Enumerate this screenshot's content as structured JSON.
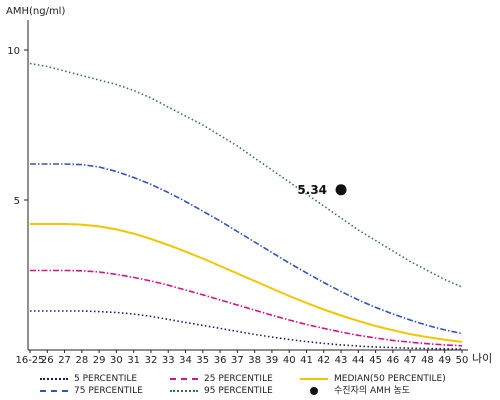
{
  "chart_data": {
    "type": "line",
    "title": "",
    "ylabel": "AMH(ng/ml)",
    "xlabel": "나이",
    "ylim": [
      0,
      11
    ],
    "yticks": [
      5,
      10
    ],
    "grid": false,
    "legend_position": "bottom",
    "categories": [
      "16-25",
      "26",
      "27",
      "28",
      "29",
      "30",
      "31",
      "32",
      "33",
      "34",
      "35",
      "36",
      "37",
      "38",
      "39",
      "40",
      "41",
      "42",
      "43",
      "44",
      "45",
      "46",
      "47",
      "48",
      "49",
      "50"
    ],
    "series": [
      {
        "name": "5 PERCENTILE",
        "color": "#1a1a6e",
        "style": "dotted",
        "values": [
          1.3,
          1.3,
          1.3,
          1.3,
          1.28,
          1.25,
          1.2,
          1.12,
          1.02,
          0.92,
          0.82,
          0.72,
          0.62,
          0.52,
          0.43,
          0.35,
          0.28,
          0.22,
          0.17,
          0.13,
          0.1,
          0.08,
          0.06,
          0.05,
          0.04,
          0.03
        ]
      },
      {
        "name": "25 PERCENTILE",
        "color": "#d4148c",
        "style": "dashdot",
        "values": [
          2.65,
          2.65,
          2.65,
          2.64,
          2.6,
          2.52,
          2.42,
          2.3,
          2.16,
          2.0,
          1.84,
          1.67,
          1.5,
          1.33,
          1.16,
          1.0,
          0.85,
          0.72,
          0.6,
          0.49,
          0.4,
          0.32,
          0.26,
          0.21,
          0.17,
          0.14
        ]
      },
      {
        "name": "75 PERCENTILE",
        "color": "#3355bb",
        "style": "dashdot",
        "values": [
          6.2,
          6.2,
          6.2,
          6.18,
          6.1,
          5.95,
          5.75,
          5.52,
          5.25,
          4.95,
          4.63,
          4.3,
          3.95,
          3.6,
          3.25,
          2.9,
          2.57,
          2.25,
          1.95,
          1.67,
          1.42,
          1.2,
          1.0,
          0.82,
          0.67,
          0.55
        ]
      },
      {
        "name": "MEDIAN(50 PERCENTILE)",
        "color": "#f2c500",
        "style": "solid",
        "values": [
          4.2,
          4.2,
          4.2,
          4.18,
          4.12,
          4.02,
          3.88,
          3.7,
          3.5,
          3.28,
          3.05,
          2.8,
          2.55,
          2.3,
          2.05,
          1.8,
          1.57,
          1.35,
          1.15,
          0.97,
          0.8,
          0.66,
          0.53,
          0.43,
          0.34,
          0.27
        ]
      },
      {
        "name": "95 PERCENTILE",
        "color": "#2f7a3f",
        "style": "dotted",
        "values": [
          9.55,
          9.45,
          9.3,
          9.15,
          9.0,
          8.85,
          8.65,
          8.4,
          8.1,
          7.8,
          7.5,
          7.15,
          6.8,
          6.4,
          6.0,
          5.6,
          5.2,
          4.8,
          4.4,
          4.0,
          3.65,
          3.3,
          2.95,
          2.65,
          2.35,
          2.1
        ]
      }
    ],
    "point": {
      "name": "수진자의 AMH 농도",
      "x": "43",
      "y": 5.34,
      "label": "5.34",
      "color": "#111111"
    }
  }
}
